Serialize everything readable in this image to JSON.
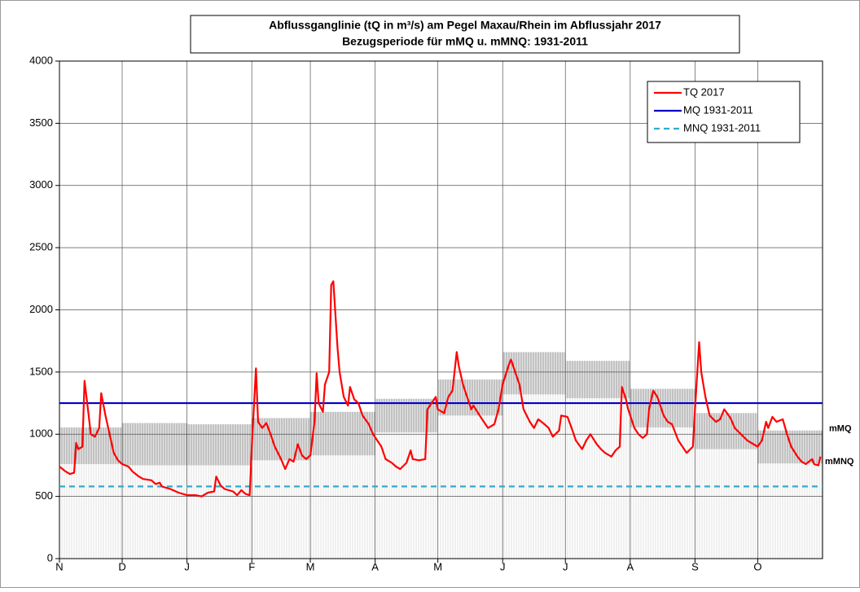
{
  "chart_data": {
    "type": "line",
    "title": "Abflussganglinie (tQ in m³/s) am Pegel Maxau/Rhein im Abflussjahr 2017",
    "subtitle": "Bezugsperiode für mMQ u. mMNQ: 1931-2011",
    "xlim": [
      0,
      365
    ],
    "xticks": [
      {
        "value": 0,
        "label": "N"
      },
      {
        "value": 30,
        "label": "D"
      },
      {
        "value": 61,
        "label": "J"
      },
      {
        "value": 92,
        "label": "F"
      },
      {
        "value": 120,
        "label": "M"
      },
      {
        "value": 151,
        "label": "A"
      },
      {
        "value": 181,
        "label": "M"
      },
      {
        "value": 212,
        "label": "J"
      },
      {
        "value": 242,
        "label": "J"
      },
      {
        "value": 273,
        "label": "A"
      },
      {
        "value": 304,
        "label": "S"
      },
      {
        "value": 334,
        "label": "O"
      }
    ],
    "ylim": [
      0,
      4000
    ],
    "yticks": [
      0,
      500,
      1000,
      1500,
      2000,
      2500,
      3000,
      3500,
      4000
    ],
    "grid": true,
    "legend": "upper right",
    "x": [
      0,
      3,
      5,
      7,
      8,
      9,
      11,
      12,
      14,
      15,
      17,
      19,
      20,
      22,
      24,
      26,
      28,
      30,
      33,
      35,
      38,
      40,
      44,
      46,
      48,
      49,
      53,
      57,
      61,
      65,
      68,
      71,
      74,
      75,
      77,
      79,
      83,
      85,
      87,
      89,
      91,
      92,
      94,
      95,
      97,
      99,
      101,
      103,
      106,
      108,
      110,
      112,
      114,
      116,
      118,
      120,
      122,
      123,
      124,
      126,
      127,
      129,
      130,
      131,
      133,
      134,
      136,
      138,
      139,
      141,
      143,
      145,
      148,
      150,
      152,
      154,
      156,
      159,
      161,
      163,
      166,
      168,
      169,
      172,
      175,
      176,
      178,
      180,
      181,
      184,
      186,
      188,
      190,
      191,
      193,
      194,
      197,
      198,
      201,
      203,
      205,
      208,
      210,
      212,
      215,
      216,
      218,
      220,
      222,
      225,
      227,
      229,
      232,
      234,
      236,
      239,
      240,
      243,
      245,
      247,
      250,
      252,
      254,
      257,
      259,
      261,
      264,
      266,
      268,
      269,
      271,
      272,
      275,
      277,
      279,
      281,
      282,
      284,
      286,
      289,
      291,
      293,
      296,
      298,
      300,
      303,
      304,
      306,
      307,
      309,
      311,
      314,
      316,
      318,
      321,
      323,
      326,
      329,
      332,
      334,
      336,
      338,
      339,
      341,
      343,
      346,
      348,
      350,
      353,
      355,
      357,
      360,
      361,
      363,
      364
    ],
    "series": [
      {
        "name": "TQ 2017",
        "color": "#ff0000",
        "values": [
          740,
          700,
          680,
          690,
          930,
          880,
          900,
          1430,
          1150,
          1000,
          980,
          1050,
          1330,
          1150,
          1000,
          850,
          790,
          760,
          740,
          700,
          660,
          640,
          630,
          600,
          610,
          580,
          560,
          530,
          510,
          510,
          500,
          530,
          540,
          660,
          590,
          560,
          540,
          510,
          550,
          520,
          510,
          900,
          1530,
          1100,
          1050,
          1090,
          1000,
          900,
          800,
          720,
          800,
          780,
          920,
          830,
          800,
          830,
          1100,
          1490,
          1250,
          1180,
          1400,
          1500,
          2200,
          2230,
          1700,
          1500,
          1300,
          1230,
          1380,
          1280,
          1250,
          1150,
          1080,
          1000,
          950,
          900,
          800,
          770,
          740,
          720,
          770,
          870,
          800,
          790,
          800,
          1200,
          1250,
          1300,
          1200,
          1170,
          1300,
          1350,
          1660,
          1550,
          1400,
          1350,
          1200,
          1230,
          1150,
          1100,
          1050,
          1080,
          1200,
          1400,
          1560,
          1600,
          1500,
          1400,
          1200,
          1100,
          1050,
          1120,
          1080,
          1050,
          980,
          1030,
          1150,
          1140,
          1050,
          950,
          880,
          950,
          1000,
          920,
          880,
          850,
          820,
          870,
          900,
          1380,
          1280,
          1200,
          1050,
          1000,
          970,
          1000,
          1200,
          1350,
          1300,
          1150,
          1100,
          1080,
          950,
          900,
          850,
          900,
          1200,
          1740,
          1500,
          1300,
          1150,
          1100,
          1120,
          1200,
          1130,
          1050,
          1000,
          950,
          920,
          900,
          950,
          1100,
          1050,
          1140,
          1100,
          1120,
          1000,
          900,
          820,
          780,
          760,
          800,
          760,
          750,
          820
        ]
      }
    ],
    "reference_lines": [
      {
        "name": "MQ 1931-2011",
        "value": 1250,
        "color": "#0000cc",
        "dash": false
      },
      {
        "name": "MNQ 1931-2011",
        "value": 580,
        "color": "#33aacc",
        "dash": true
      }
    ],
    "monthly": {
      "mMQ_label": "mMQ",
      "mMNQ_label": "mMNQ",
      "mMQ": [
        1055,
        1090,
        1080,
        1130,
        1180,
        1285,
        1440,
        1660,
        1590,
        1365,
        1170,
        1030
      ],
      "mMNQ": [
        760,
        750,
        750,
        790,
        830,
        1015,
        1150,
        1320,
        1290,
        1055,
        880,
        765
      ]
    }
  }
}
